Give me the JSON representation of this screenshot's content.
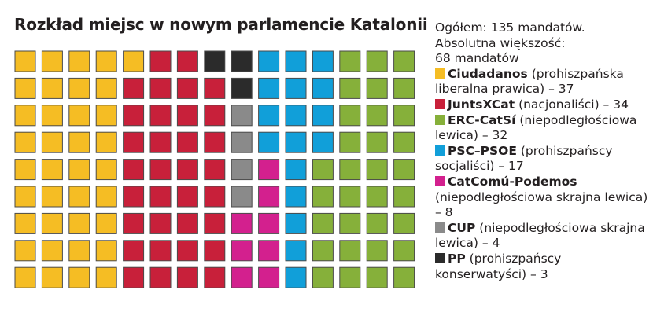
{
  "chart_data": {
    "type": "waffle",
    "title": "Rozkład miejsc w nowym parlamencie Katalonii",
    "total_label": "Ogółem: 135 mandatów.",
    "majority_label_line1": "Absolutna większość:",
    "majority_label_line2": "68 mandatów",
    "rows": 9,
    "columns": 15,
    "series": [
      {
        "name": "Ciudadanos",
        "description": "(prohiszpańska liberalna prawica) – 37",
        "value": 37,
        "color": "#f5bd24"
      },
      {
        "name": "JuntsXCat",
        "description": "(nacjonaliści) – 34",
        "value": 34,
        "color": "#c8203a"
      },
      {
        "name": "PP",
        "description": "(prohiszpańscy konserwatyści) – 3",
        "value": 3,
        "color": "#2b2b2b"
      },
      {
        "name": "CUP",
        "description": "(niepodległościowa skrajna lewica) – 4",
        "value": 4,
        "color": "#8a8a8a"
      },
      {
        "name": "CatComú-Podemos",
        "description": "(niepodległościowa skrajna lewica) – 8",
        "value": 8,
        "color": "#d3208e"
      },
      {
        "name": "PSC–PSOE",
        "description": "(prohiszpańscy socjaliści) – 17",
        "value": 17,
        "color": "#119fd9"
      },
      {
        "name": "ERC-CatSí",
        "description": "(niepodległościowa lewica) – 32",
        "value": 32,
        "color": "#86b03a"
      }
    ],
    "legend_order": [
      "Ciudadanos",
      "JuntsXCat",
      "ERC-CatSí",
      "PSC–PSOE",
      "CatComú-Podemos",
      "CUP",
      "PP"
    ],
    "column_fill": [
      [
        "Ciudadanos",
        9
      ],
      [
        "Ciudadanos",
        9
      ],
      [
        "Ciudadanos",
        9
      ],
      [
        "Ciudadanos",
        9
      ],
      [
        "Ciudadanos",
        1,
        "JuntsXCat",
        8
      ],
      [
        "JuntsXCat",
        9
      ],
      [
        "JuntsXCat",
        9
      ],
      [
        "PP",
        1,
        "JuntsXCat",
        8
      ],
      [
        "PP",
        2,
        "CUP",
        4,
        "CatComú-Podemos",
        3
      ],
      [
        "PSC–PSOE",
        4,
        "CatComú-Podemos",
        5
      ],
      [
        "PSC–PSOE",
        9
      ],
      [
        "PSC–PSOE",
        4,
        "ERC-CatSí",
        5
      ],
      [
        "ERC-CatSí",
        9
      ],
      [
        "ERC-CatSí",
        9
      ],
      [
        "ERC-CatSí",
        9
      ]
    ]
  }
}
